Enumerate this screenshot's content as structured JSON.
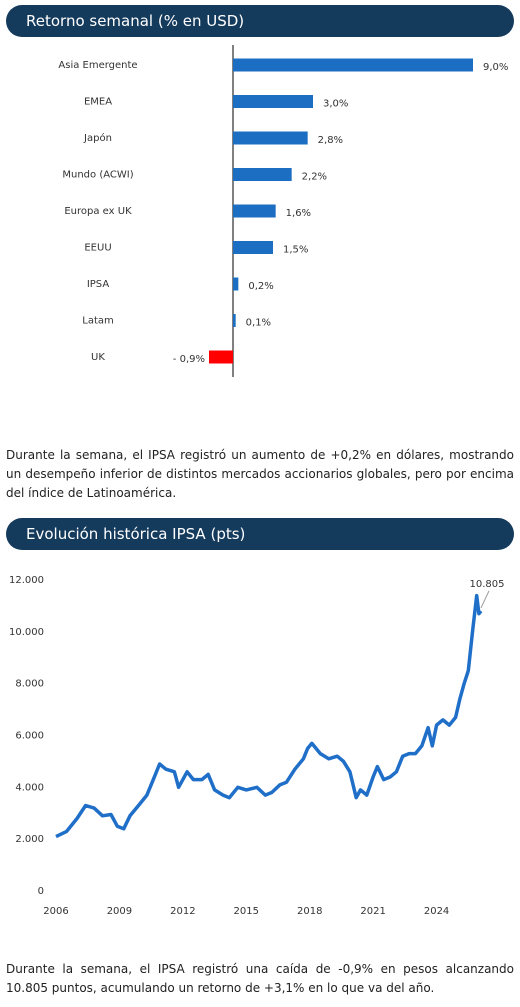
{
  "chart_data": [
    {
      "type": "hbar",
      "title": "Retorno semanal (% en USD)",
      "categories": [
        "Asia Emergente",
        "EMEA",
        "Japón",
        "Mundo (ACWI)",
        "Europa ex UK",
        "EEUU",
        "IPSA",
        "Latam",
        "UK"
      ],
      "values": [
        9.0,
        3.0,
        2.8,
        2.2,
        1.6,
        1.5,
        0.2,
        0.1,
        -0.9
      ],
      "value_labels": [
        "9,0%",
        "3,0%",
        "2,8%",
        "2,2%",
        "1,6%",
        "1,5%",
        "0,2%",
        "0,1%",
        "- 0,9%"
      ],
      "color": "#1b6ec2",
      "negative_color": "#ff0000"
    },
    {
      "type": "line",
      "title": "Evolución histórica IPSA (pts)",
      "x": [
        2006.0,
        2006.5,
        2007.0,
        2007.4,
        2007.8,
        2008.2,
        2008.6,
        2008.9,
        2009.2,
        2009.5,
        2009.9,
        2010.3,
        2010.7,
        2010.9,
        2011.2,
        2011.6,
        2011.8,
        2012.2,
        2012.5,
        2012.9,
        2013.2,
        2013.5,
        2013.9,
        2014.2,
        2014.6,
        2015.0,
        2015.5,
        2015.9,
        2016.2,
        2016.6,
        2016.9,
        2017.3,
        2017.7,
        2017.9,
        2018.1,
        2018.5,
        2018.9,
        2019.3,
        2019.6,
        2019.9,
        2020.2,
        2020.4,
        2020.7,
        2021.0,
        2021.2,
        2021.5,
        2021.8,
        2022.1,
        2022.4,
        2022.7,
        2023.0,
        2023.3,
        2023.6,
        2023.8,
        2024.0,
        2024.3,
        2024.6,
        2024.9,
        2025.1,
        2025.3,
        2025.5,
        2025.7,
        2025.9,
        2026.0,
        2026.1
      ],
      "values": [
        2100,
        2300,
        2800,
        3300,
        3200,
        2900,
        2950,
        2500,
        2400,
        2900,
        3300,
        3700,
        4500,
        4900,
        4700,
        4600,
        4000,
        4600,
        4300,
        4300,
        4500,
        3900,
        3700,
        3600,
        4000,
        3900,
        4000,
        3700,
        3800,
        4100,
        4200,
        4700,
        5100,
        5500,
        5700,
        5300,
        5100,
        5200,
        5000,
        4600,
        3600,
        3900,
        3700,
        4400,
        4800,
        4300,
        4400,
        4600,
        5200,
        5300,
        5300,
        5600,
        6300,
        5600,
        6400,
        6600,
        6400,
        6700,
        7400,
        8000,
        8500,
        10000,
        11400,
        10700,
        10805
      ],
      "color": "#1f6fc9",
      "xlim": [
        2006,
        2027
      ],
      "xticks": [
        2006,
        2009,
        2012,
        2015,
        2018,
        2021,
        2024
      ],
      "ylim": [
        0,
        12000
      ],
      "yticks": [
        0,
        {
          "value": 2000,
          "label": "2.000"
        },
        {
          "value": 4000,
          "label": "4.000"
        },
        {
          "value": 6000,
          "label": "6.000"
        },
        {
          "value": 8000,
          "label": "8.000"
        },
        {
          "value": 10000,
          "label": "10.000"
        },
        {
          "value": 12000,
          "label": "12.000"
        }
      ],
      "annotation": "10.805"
    }
  ],
  "paragraphs": [
    "Durante la semana, el IPSA registró un aumento de +0,2% en dólares, mostrando un desempeño inferior de distintos mercados accionarios globales, pero por encima del índice de Latinoamérica.",
    "Durante la semana, el IPSA registró una caída de -0,9% en pesos alcanzando 10.805 puntos, acumulando un retorno de +3,1% en lo que va del año."
  ]
}
